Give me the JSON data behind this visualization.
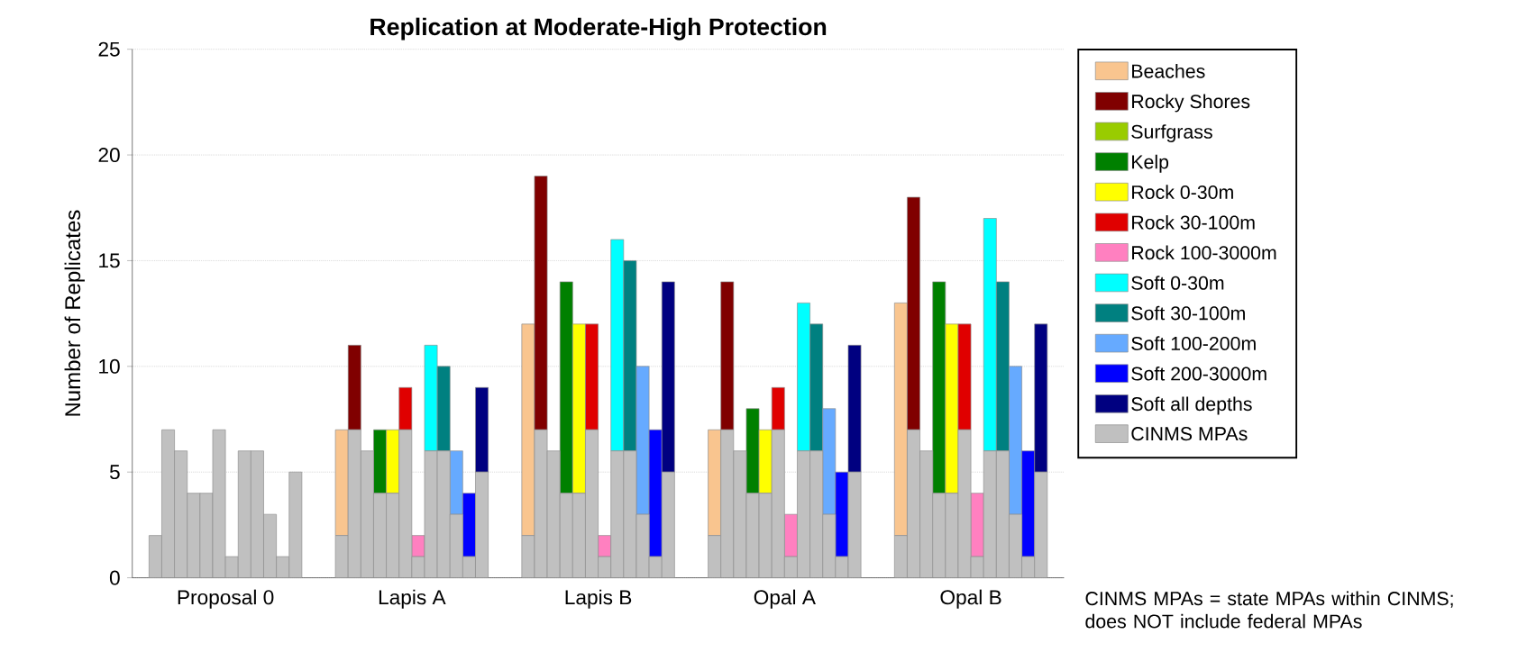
{
  "chart_data": {
    "type": "bar",
    "title": "Replication at Moderate-High Protection",
    "ylabel": "Number of Replicates",
    "categories": [
      "Proposal 0",
      "Lapis A",
      "Lapis B",
      "Opal A",
      "Opal B"
    ],
    "ylim": [
      0,
      25
    ],
    "yticks": [
      0,
      5,
      10,
      15,
      20,
      25
    ],
    "grid": "y",
    "legend": "right",
    "annotations": [
      "CINMS MPAs = state MPAs within CINMS; does NOT include federal MPAs"
    ],
    "series": [
      {
        "name": "Beaches",
        "color": "#f9c58f",
        "values": [
          null,
          5,
          10,
          5,
          11
        ],
        "base": [
          null,
          2,
          2,
          2,
          2
        ]
      },
      {
        "name": "Rocky Shores",
        "color": "#800000",
        "values": [
          null,
          4,
          12,
          7,
          11
        ],
        "base": [
          null,
          7,
          7,
          7,
          7
        ]
      },
      {
        "name": "Surfgrass",
        "color": "#99cc00",
        "values": [
          null,
          null,
          null,
          null,
          null
        ],
        "base": [
          null,
          null,
          null,
          null,
          null
        ]
      },
      {
        "name": "Kelp",
        "color": "#008000",
        "values": [
          null,
          3,
          10,
          4,
          10
        ],
        "base": [
          null,
          4,
          4,
          4,
          4
        ]
      },
      {
        "name": "Rock 0-30m",
        "color": "#ffff00",
        "values": [
          null,
          3,
          8,
          3,
          8
        ],
        "base": [
          null,
          4,
          4,
          4,
          4
        ]
      },
      {
        "name": "Rock 30-100m",
        "color": "#e00000",
        "values": [
          null,
          2,
          5,
          2,
          5
        ],
        "base": [
          null,
          7,
          7,
          7,
          7
        ]
      },
      {
        "name": "Rock 100-3000m",
        "color": "#ff80c0",
        "values": [
          null,
          1,
          1,
          2,
          3
        ],
        "base": [
          null,
          1,
          1,
          1,
          1
        ]
      },
      {
        "name": "Soft 0-30m",
        "color": "#00ffff",
        "values": [
          null,
          5,
          10,
          7,
          11
        ],
        "base": [
          null,
          6,
          6,
          6,
          6
        ]
      },
      {
        "name": "Soft 30-100m",
        "color": "#008080",
        "values": [
          null,
          4,
          9,
          6,
          8
        ],
        "base": [
          null,
          6,
          6,
          6,
          6
        ]
      },
      {
        "name": "Soft 100-200m",
        "color": "#66aaff",
        "values": [
          null,
          3,
          7,
          5,
          7
        ],
        "base": [
          null,
          3,
          3,
          3,
          3
        ]
      },
      {
        "name": "Soft 200-3000m",
        "color": "#0000ff",
        "values": [
          null,
          3,
          6,
          4,
          5
        ],
        "base": [
          null,
          1,
          1,
          1,
          1
        ]
      },
      {
        "name": "Soft all depths",
        "color": "#000080",
        "values": [
          null,
          4,
          9,
          6,
          7
        ],
        "base": [
          null,
          5,
          5,
          5,
          5
        ]
      },
      {
        "name": "CINMS MPAs",
        "color": "#c0c0c0",
        "values": [
          2,
          2,
          2,
          2,
          2
        ]
      },
      {
        "color": "#c0c0c0",
        "values": [
          7,
          7,
          7,
          7,
          7
        ]
      },
      {
        "color": "#c0c0c0",
        "values": [
          6,
          6,
          6,
          6,
          6
        ]
      },
      {
        "color": "#c0c0c0",
        "values": [
          4,
          4,
          4,
          4,
          4
        ]
      },
      {
        "color": "#c0c0c0",
        "values": [
          4,
          4,
          4,
          4,
          4
        ]
      },
      {
        "color": "#c0c0c0",
        "values": [
          7,
          7,
          7,
          7,
          7
        ]
      },
      {
        "color": "#c0c0c0",
        "values": [
          1,
          1,
          1,
          1,
          1
        ]
      },
      {
        "color": "#c0c0c0",
        "values": [
          6,
          6,
          6,
          6,
          6
        ]
      },
      {
        "color": "#c0c0c0",
        "values": [
          6,
          6,
          6,
          6,
          6
        ]
      },
      {
        "color": "#c0c0c0",
        "values": [
          3,
          3,
          3,
          3,
          3
        ]
      },
      {
        "color": "#c0c0c0",
        "values": [
          1,
          1,
          1,
          1,
          1
        ]
      },
      {
        "color": "#c0c0c0",
        "values": [
          5,
          5,
          5,
          5,
          5
        ]
      }
    ]
  }
}
